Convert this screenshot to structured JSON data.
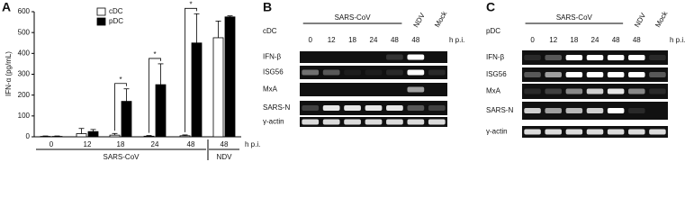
{
  "chart_data": {
    "type": "bar",
    "panel_label": "A",
    "y_label": "IFN-α (pg/mL)",
    "x_unit": "h p.i.",
    "categories": [
      "0",
      "12",
      "18",
      "24",
      "48",
      "48"
    ],
    "category_groups": [
      "SARS-CoV",
      "SARS-CoV",
      "SARS-CoV",
      "SARS-CoV",
      "SARS-CoV",
      "NDV"
    ],
    "series": [
      {
        "name": "cDC",
        "color": "#ffffff",
        "values": [
          2,
          15,
          8,
          3,
          5,
          475
        ],
        "errors": [
          2,
          25,
          8,
          3,
          4,
          80
        ]
      },
      {
        "name": "pDC",
        "color": "#000000",
        "values": [
          2,
          25,
          170,
          250,
          450,
          575
        ],
        "errors": [
          2,
          10,
          60,
          100,
          140,
          5
        ]
      }
    ],
    "significance": [
      null,
      null,
      "*",
      "*",
      "*",
      null
    ],
    "ylim": [
      0,
      600
    ],
    "yticks": [
      0,
      100,
      200,
      300,
      400,
      500,
      600
    ],
    "legend": "top"
  },
  "gels": [
    {
      "panel_label": "B",
      "cell_type": "cDC",
      "virus": "SARS-CoV",
      "control_labels": [
        "NDV",
        "Mock"
      ],
      "lanes": [
        "0",
        "12",
        "18",
        "24",
        "48",
        "48"
      ],
      "lane_unit": "h p.i.",
      "rows": [
        "IFN-β",
        "ISG56",
        "MxA",
        "SARS-N",
        "γ-actin"
      ]
    },
    {
      "panel_label": "C",
      "cell_type": "pDC",
      "virus": "SARS-CoV",
      "control_labels": [
        "NDV",
        "Mock"
      ],
      "lanes": [
        "0",
        "12",
        "18",
        "24",
        "48",
        "48"
      ],
      "lane_unit": "h p.i.",
      "rows": [
        "IFN-β",
        "ISG56",
        "MxA",
        "SARS-N",
        "γ-actin"
      ]
    }
  ]
}
